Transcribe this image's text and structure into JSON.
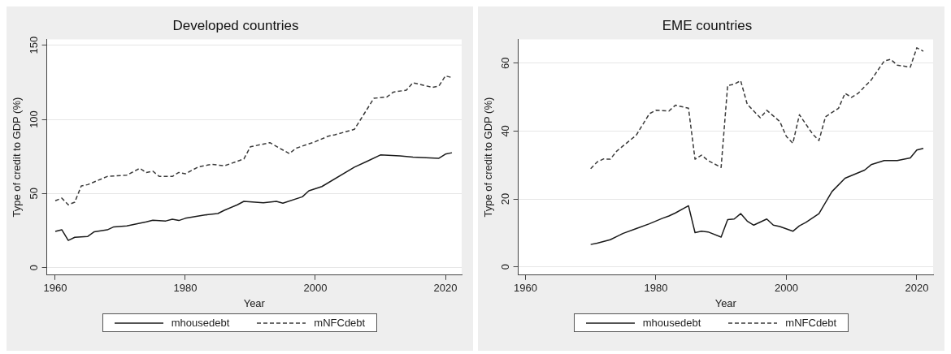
{
  "chart_data": [
    {
      "type": "line",
      "title": "Developed countries",
      "xlabel": "Year",
      "ylabel": "Type of credit to GDP (%)",
      "xlim": [
        1958.7,
        2022.5
      ],
      "xticks": [
        1960,
        1980,
        2000,
        2020
      ],
      "ylim": [
        -5,
        154
      ],
      "yticks": [
        0,
        50,
        100,
        150
      ],
      "grid": "y",
      "legend": "bottom",
      "series": [
        {
          "name": "mhousedebt",
          "color": "#1a1a1a",
          "line_style": "solid",
          "x": [
            1960,
            1961,
            1962,
            1963,
            1965,
            1966,
            1968,
            1969,
            1971,
            1974,
            1975,
            1977,
            1978,
            1979,
            1980,
            1983,
            1985,
            1986,
            1988,
            1989,
            1992,
            1994,
            1995,
            1998,
            1999,
            2001,
            2006,
            2008,
            2010,
            2013,
            2015,
            2019,
            2020,
            2021
          ],
          "values": [
            24.5,
            25.6,
            18.4,
            20.5,
            21.1,
            24.2,
            25.5,
            27.5,
            28.2,
            30.9,
            32,
            31.5,
            32.7,
            31.8,
            33.3,
            35.5,
            36.5,
            38.7,
            42.4,
            44.7,
            43.8,
            44.7,
            43.5,
            47.8,
            51.8,
            54.7,
            67.8,
            71.8,
            76,
            75.4,
            74.5,
            73.8,
            76.6,
            77.5
          ]
        },
        {
          "name": "mNFCdebt",
          "color": "#3a3a3a",
          "line_style": "dashed",
          "x": [
            1960,
            1961,
            1962,
            1963,
            1964,
            1965,
            1968,
            1971,
            1973,
            1974,
            1975,
            1976,
            1978,
            1979,
            1980,
            1982,
            1984,
            1986,
            1989,
            1990,
            1993,
            1996,
            1997,
            2000,
            2002,
            2003,
            2006,
            2009,
            2011,
            2012,
            2014,
            2015,
            2018,
            2019,
            2020,
            2021
          ],
          "values": [
            45.1,
            46.9,
            42.4,
            44.2,
            55.1,
            56,
            61.5,
            62.4,
            67,
            64.2,
            65.1,
            61.5,
            61.5,
            64.2,
            63.3,
            67.9,
            69.7,
            68.7,
            73.3,
            81.5,
            84.3,
            76.9,
            80.5,
            85,
            88.7,
            89.6,
            93.3,
            114.2,
            115.1,
            118.4,
            119.7,
            124.7,
            121.6,
            122.5,
            129.3,
            128.2
          ]
        }
      ]
    },
    {
      "type": "line",
      "title": "EME countries",
      "xlabel": "Year",
      "ylabel": "Type of credit to GDP (%)",
      "xlim": [
        1958.9,
        2022.5
      ],
      "xticks": [
        1960,
        1980,
        2000,
        2020
      ],
      "ylim": [
        -2.4,
        67
      ],
      "yticks": [
        0,
        20,
        40,
        60
      ],
      "grid": "y",
      "legend": "bottom",
      "series": [
        {
          "name": "mhousedebt",
          "color": "#1a1a1a",
          "line_style": "solid",
          "x": [
            1970,
            1971,
            1973,
            1975,
            1977,
            1979,
            1981,
            1982,
            1983,
            1985,
            1986,
            1987,
            1988,
            1990,
            1991,
            1992,
            1993,
            1994,
            1995,
            1997,
            1998,
            1999,
            2001,
            2002,
            2003,
            2005,
            2007,
            2009,
            2012,
            2013,
            2015,
            2017,
            2019,
            2020,
            2021
          ],
          "values": [
            6.6,
            7,
            8,
            9.9,
            11.3,
            12.7,
            14.3,
            15,
            15.9,
            18,
            10.1,
            10.5,
            10.3,
            8.8,
            13.9,
            14.1,
            15.7,
            13.5,
            12.3,
            14.1,
            12.3,
            11.9,
            10.5,
            12.1,
            13.1,
            15.7,
            22.2,
            26.1,
            28.5,
            30.1,
            31.3,
            31.3,
            32.1,
            34.4,
            34.9
          ]
        },
        {
          "name": "mNFCdebt",
          "color": "#3a3a3a",
          "line_style": "dashed",
          "x": [
            1970,
            1971,
            1972,
            1973,
            1974,
            1977,
            1979,
            1980,
            1982,
            1983,
            1985,
            1986,
            1987,
            1988,
            1990,
            1991,
            1992,
            1993,
            1994,
            1996,
            1997,
            1999,
            2000,
            2001,
            2002,
            2004,
            2005,
            2006,
            2008,
            2009,
            2010,
            2011,
            2013,
            2015,
            2016,
            2017,
            2019,
            2020,
            2021
          ],
          "values": [
            28.9,
            30.9,
            31.8,
            31.7,
            34.1,
            38.8,
            45.1,
            46.1,
            45.9,
            47.6,
            46.7,
            31.7,
            32.9,
            31.3,
            29.3,
            53.4,
            53.8,
            54.8,
            47.9,
            43.9,
            46.1,
            42.8,
            38.4,
            36.4,
            44.8,
            39.2,
            37.2,
            44.2,
            46.7,
            51.1,
            49.9,
            51.1,
            55,
            60.6,
            61.1,
            59.4,
            58.8,
            64.5,
            63.5
          ]
        }
      ]
    }
  ]
}
